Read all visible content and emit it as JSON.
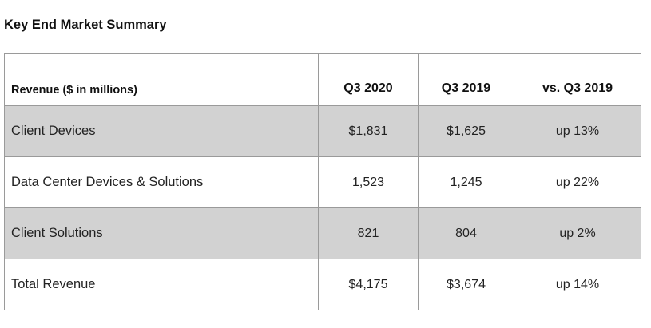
{
  "title": "Key End Market Summary",
  "table": {
    "columns": [
      "Revenue ($ in millions)",
      "Q3 2020",
      "Q3 2019",
      "vs. Q3 2019"
    ],
    "rows": [
      {
        "label": "Client Devices",
        "q3_2020": "$1,831",
        "q3_2019": "$1,625",
        "change": "up 13%"
      },
      {
        "label": "Data Center Devices & Solutions",
        "q3_2020": "1,523",
        "q3_2019": "1,245",
        "change": "up 22%"
      },
      {
        "label": "Client Solutions",
        "q3_2020": "821",
        "q3_2019": "804",
        "change": "up 2%"
      },
      {
        "label": "Total Revenue",
        "q3_2020": "$4,175",
        "q3_2019": "$3,674",
        "change": "up 14%"
      }
    ]
  },
  "colors": {
    "shaded_row": "#d2d2d2",
    "border": "#9a9a9a"
  }
}
